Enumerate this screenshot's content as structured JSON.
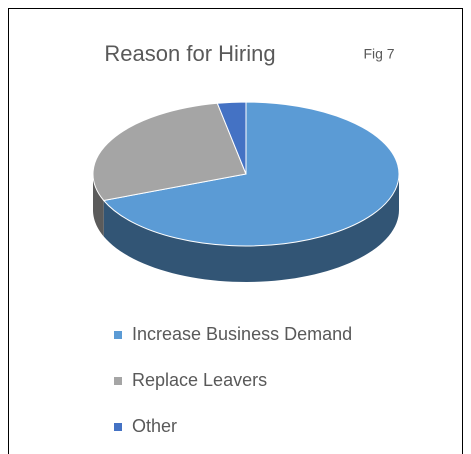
{
  "chart_data": {
    "type": "pie",
    "title": "Reason for Hiring",
    "annotation": "Fig 7",
    "categories": [
      "Increase Business Demand",
      "Replace Leavers",
      "Other"
    ],
    "values": [
      69,
      28,
      3
    ],
    "colors": [
      "#5b9bd5",
      "#a5a5a5",
      "#4472c4"
    ],
    "legend": "bottom"
  }
}
